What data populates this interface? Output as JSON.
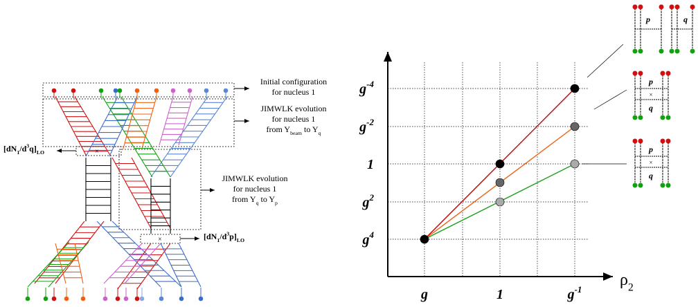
{
  "left": {
    "initial_label": [
      [
        {
          "text": "Initial configuration"
        }
      ],
      [
        {
          "text": "for nucleus 1"
        }
      ]
    ],
    "evolution_beam_label": [
      [
        {
          "text": "JIMWLK evolution"
        }
      ],
      [
        {
          "text": "for nucleus 1"
        }
      ],
      [
        {
          "text": "from Y"
        },
        {
          "sub": "beam"
        },
        {
          "text": " to Y"
        },
        {
          "sub": "q"
        }
      ]
    ],
    "evolution_q_label": [
      [
        {
          "text": "JIMWLK evolution"
        }
      ],
      [
        {
          "text": "for nucleus 1"
        }
      ],
      [
        {
          "text": "from Y"
        },
        {
          "sub": "q"
        },
        {
          "text": " to Y"
        },
        {
          "sub": "p"
        }
      ]
    ],
    "dn_q_label": [
      [
        {
          "text": "[dN"
        },
        {
          "sub": "1"
        },
        {
          "text": "/d"
        },
        {
          "sup": "3"
        },
        {
          "text": "q]"
        },
        {
          "sub": "LO"
        }
      ]
    ],
    "dn_p_label": [
      [
        {
          "text": "[dN"
        },
        {
          "sub": "1"
        },
        {
          "text": "/d"
        },
        {
          "sup": "3"
        },
        {
          "text": "p]"
        },
        {
          "sub": "LO"
        }
      ]
    ]
  },
  "plot": {
    "x_labels": [
      [
        {
          "text": "g"
        }
      ],
      [
        {
          "text": "1"
        }
      ],
      [
        {
          "text": "g"
        },
        {
          "sup": "-1"
        }
      ]
    ],
    "y_labels": [
      [
        {
          "text": "g"
        },
        {
          "sup": "4"
        }
      ],
      [
        {
          "text": "g"
        },
        {
          "sup": "2"
        }
      ],
      [
        {
          "text": "1"
        }
      ],
      [
        {
          "text": "g"
        },
        {
          "sup": "-2"
        }
      ],
      [
        {
          "text": "g"
        },
        {
          "sup": "-4"
        }
      ]
    ],
    "axis_label": [
      {
        "text": "ρ"
      },
      {
        "sub": "2"
      }
    ]
  },
  "insets": [
    {
      "labels": [
        "p",
        "q"
      ]
    },
    {
      "labels": [
        "p",
        "q"
      ]
    },
    {
      "labels": [
        "p",
        "q"
      ]
    }
  ]
}
